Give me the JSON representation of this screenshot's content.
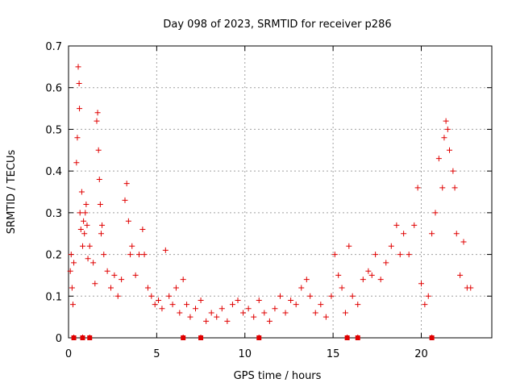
{
  "chart_data": {
    "type": "scatter",
    "title": "Day 098 of 2023, SRMTID for receiver p286",
    "xlabel": "GPS time / hours",
    "ylabel": "SRMTID / TECUs",
    "xlim": [
      0,
      24.0
    ],
    "ylim": [
      0,
      0.7
    ],
    "xticks": [
      "0",
      "5",
      "10",
      "15",
      "20"
    ],
    "yticks": [
      "0",
      "0.1",
      "0.2",
      "0.3",
      "0.4",
      "0.5",
      "0.6",
      "0.7"
    ],
    "grid": true,
    "marker": "+",
    "color": "#e00000",
    "series": [
      {
        "name": "SRMTID",
        "points": [
          [
            0.1,
            0.16
          ],
          [
            0.15,
            0.2
          ],
          [
            0.2,
            0.12
          ],
          [
            0.25,
            0.08
          ],
          [
            0.3,
            0.18
          ],
          [
            0.45,
            0.42
          ],
          [
            0.5,
            0.48
          ],
          [
            0.55,
            0.65
          ],
          [
            0.6,
            0.61
          ],
          [
            0.62,
            0.55
          ],
          [
            0.65,
            0.3
          ],
          [
            0.7,
            0.26
          ],
          [
            0.75,
            0.35
          ],
          [
            0.8,
            0.22
          ],
          [
            0.85,
            0.28
          ],
          [
            0.9,
            0.25
          ],
          [
            0.95,
            0.3
          ],
          [
            1.0,
            0.32
          ],
          [
            1.05,
            0.27
          ],
          [
            1.1,
            0.19
          ],
          [
            1.2,
            0.22
          ],
          [
            1.4,
            0.18
          ],
          [
            1.5,
            0.13
          ],
          [
            1.6,
            0.52
          ],
          [
            1.65,
            0.54
          ],
          [
            1.7,
            0.45
          ],
          [
            1.75,
            0.38
          ],
          [
            1.8,
            0.32
          ],
          [
            1.85,
            0.25
          ],
          [
            1.9,
            0.27
          ],
          [
            2.0,
            0.2
          ],
          [
            2.2,
            0.16
          ],
          [
            2.4,
            0.12
          ],
          [
            2.6,
            0.15
          ],
          [
            2.8,
            0.1
          ],
          [
            3.0,
            0.14
          ],
          [
            3.2,
            0.33
          ],
          [
            3.3,
            0.37
          ],
          [
            3.4,
            0.28
          ],
          [
            3.5,
            0.2
          ],
          [
            3.6,
            0.22
          ],
          [
            3.8,
            0.15
          ],
          [
            4.0,
            0.2
          ],
          [
            4.2,
            0.26
          ],
          [
            4.3,
            0.2
          ],
          [
            4.5,
            0.12
          ],
          [
            4.7,
            0.1
          ],
          [
            4.9,
            0.08
          ],
          [
            5.1,
            0.09
          ],
          [
            5.3,
            0.07
          ],
          [
            5.5,
            0.21
          ],
          [
            5.7,
            0.1
          ],
          [
            5.9,
            0.08
          ],
          [
            6.1,
            0.12
          ],
          [
            6.3,
            0.06
          ],
          [
            6.5,
            0.14
          ],
          [
            6.7,
            0.08
          ],
          [
            6.9,
            0.05
          ],
          [
            7.2,
            0.07
          ],
          [
            7.5,
            0.09
          ],
          [
            7.8,
            0.04
          ],
          [
            8.1,
            0.06
          ],
          [
            8.4,
            0.05
          ],
          [
            8.7,
            0.07
          ],
          [
            9.0,
            0.04
          ],
          [
            9.3,
            0.08
          ],
          [
            9.6,
            0.09
          ],
          [
            9.9,
            0.06
          ],
          [
            10.2,
            0.07
          ],
          [
            10.5,
            0.05
          ],
          [
            10.8,
            0.09
          ],
          [
            11.1,
            0.06
          ],
          [
            11.4,
            0.04
          ],
          [
            11.7,
            0.07
          ],
          [
            12.0,
            0.1
          ],
          [
            12.3,
            0.06
          ],
          [
            12.6,
            0.09
          ],
          [
            12.9,
            0.08
          ],
          [
            13.2,
            0.12
          ],
          [
            13.5,
            0.14
          ],
          [
            13.7,
            0.1
          ],
          [
            14.0,
            0.06
          ],
          [
            14.3,
            0.08
          ],
          [
            14.6,
            0.05
          ],
          [
            14.9,
            0.1
          ],
          [
            15.1,
            0.2
          ],
          [
            15.3,
            0.15
          ],
          [
            15.5,
            0.12
          ],
          [
            15.7,
            0.06
          ],
          [
            15.9,
            0.22
          ],
          [
            16.1,
            0.1
          ],
          [
            16.4,
            0.08
          ],
          [
            16.7,
            0.14
          ],
          [
            17.0,
            0.16
          ],
          [
            17.2,
            0.15
          ],
          [
            17.4,
            0.2
          ],
          [
            17.7,
            0.14
          ],
          [
            18.0,
            0.18
          ],
          [
            18.3,
            0.22
          ],
          [
            18.6,
            0.27
          ],
          [
            18.8,
            0.2
          ],
          [
            19.0,
            0.25
          ],
          [
            19.3,
            0.2
          ],
          [
            19.6,
            0.27
          ],
          [
            19.8,
            0.36
          ],
          [
            20.0,
            0.13
          ],
          [
            20.2,
            0.08
          ],
          [
            20.4,
            0.1
          ],
          [
            20.6,
            0.25
          ],
          [
            20.8,
            0.3
          ],
          [
            21.0,
            0.43
          ],
          [
            21.2,
            0.36
          ],
          [
            21.3,
            0.48
          ],
          [
            21.4,
            0.52
          ],
          [
            21.5,
            0.5
          ],
          [
            21.6,
            0.45
          ],
          [
            21.8,
            0.4
          ],
          [
            21.9,
            0.36
          ],
          [
            22.0,
            0.25
          ],
          [
            22.2,
            0.15
          ],
          [
            22.4,
            0.23
          ],
          [
            22.6,
            0.12
          ],
          [
            22.8,
            0.12
          ]
        ]
      }
    ],
    "zero_markers_x": [
      0.3,
      0.8,
      1.2,
      6.5,
      7.5,
      10.8,
      15.8,
      16.4,
      20.6
    ],
    "bottom_ticks_x": [
      0.3,
      0.8,
      1.2,
      6.5,
      7.5,
      10.8,
      15.8,
      16.4,
      20.6
    ]
  }
}
